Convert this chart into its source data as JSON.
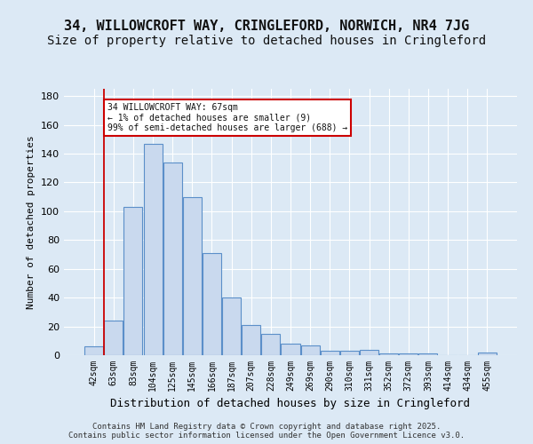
{
  "title1": "34, WILLOWCROFT WAY, CRINGLEFORD, NORWICH, NR4 7JG",
  "title2": "Size of property relative to detached houses in Cringleford",
  "xlabel": "Distribution of detached houses by size in Cringleford",
  "ylabel": "Number of detached properties",
  "categories": [
    "42sqm",
    "63sqm",
    "83sqm",
    "104sqm",
    "125sqm",
    "145sqm",
    "166sqm",
    "187sqm",
    "207sqm",
    "228sqm",
    "249sqm",
    "269sqm",
    "290sqm",
    "310sqm",
    "331sqm",
    "352sqm",
    "372sqm",
    "393sqm",
    "414sqm",
    "434sqm",
    "455sqm"
  ],
  "bar_values": [
    6,
    24,
    103,
    147,
    134,
    110,
    71,
    40,
    21,
    15,
    8,
    7,
    3,
    3,
    4,
    1,
    1,
    1,
    0,
    0,
    2
  ],
  "bar_colors_fill": "#c9d9ee",
  "bar_colors_edge": "#5b8fc9",
  "background_color": "#dce9f5",
  "plot_bg_color": "#dce9f5",
  "annotation_text": "34 WILLOWCROFT WAY: 67sqm\n← 1% of detached houses are smaller (9)\n99% of semi-detached houses are larger (688) →",
  "annotation_box_color": "#ffffff",
  "annotation_box_edge": "#cc0000",
  "vline_color": "#cc0000",
  "ylim": [
    0,
    185
  ],
  "yticks": [
    0,
    20,
    40,
    60,
    80,
    100,
    120,
    140,
    160,
    180
  ],
  "footer": "Contains HM Land Registry data © Crown copyright and database right 2025.\nContains public sector information licensed under the Open Government Licence v3.0.",
  "title_fontsize": 11,
  "subtitle_fontsize": 10
}
